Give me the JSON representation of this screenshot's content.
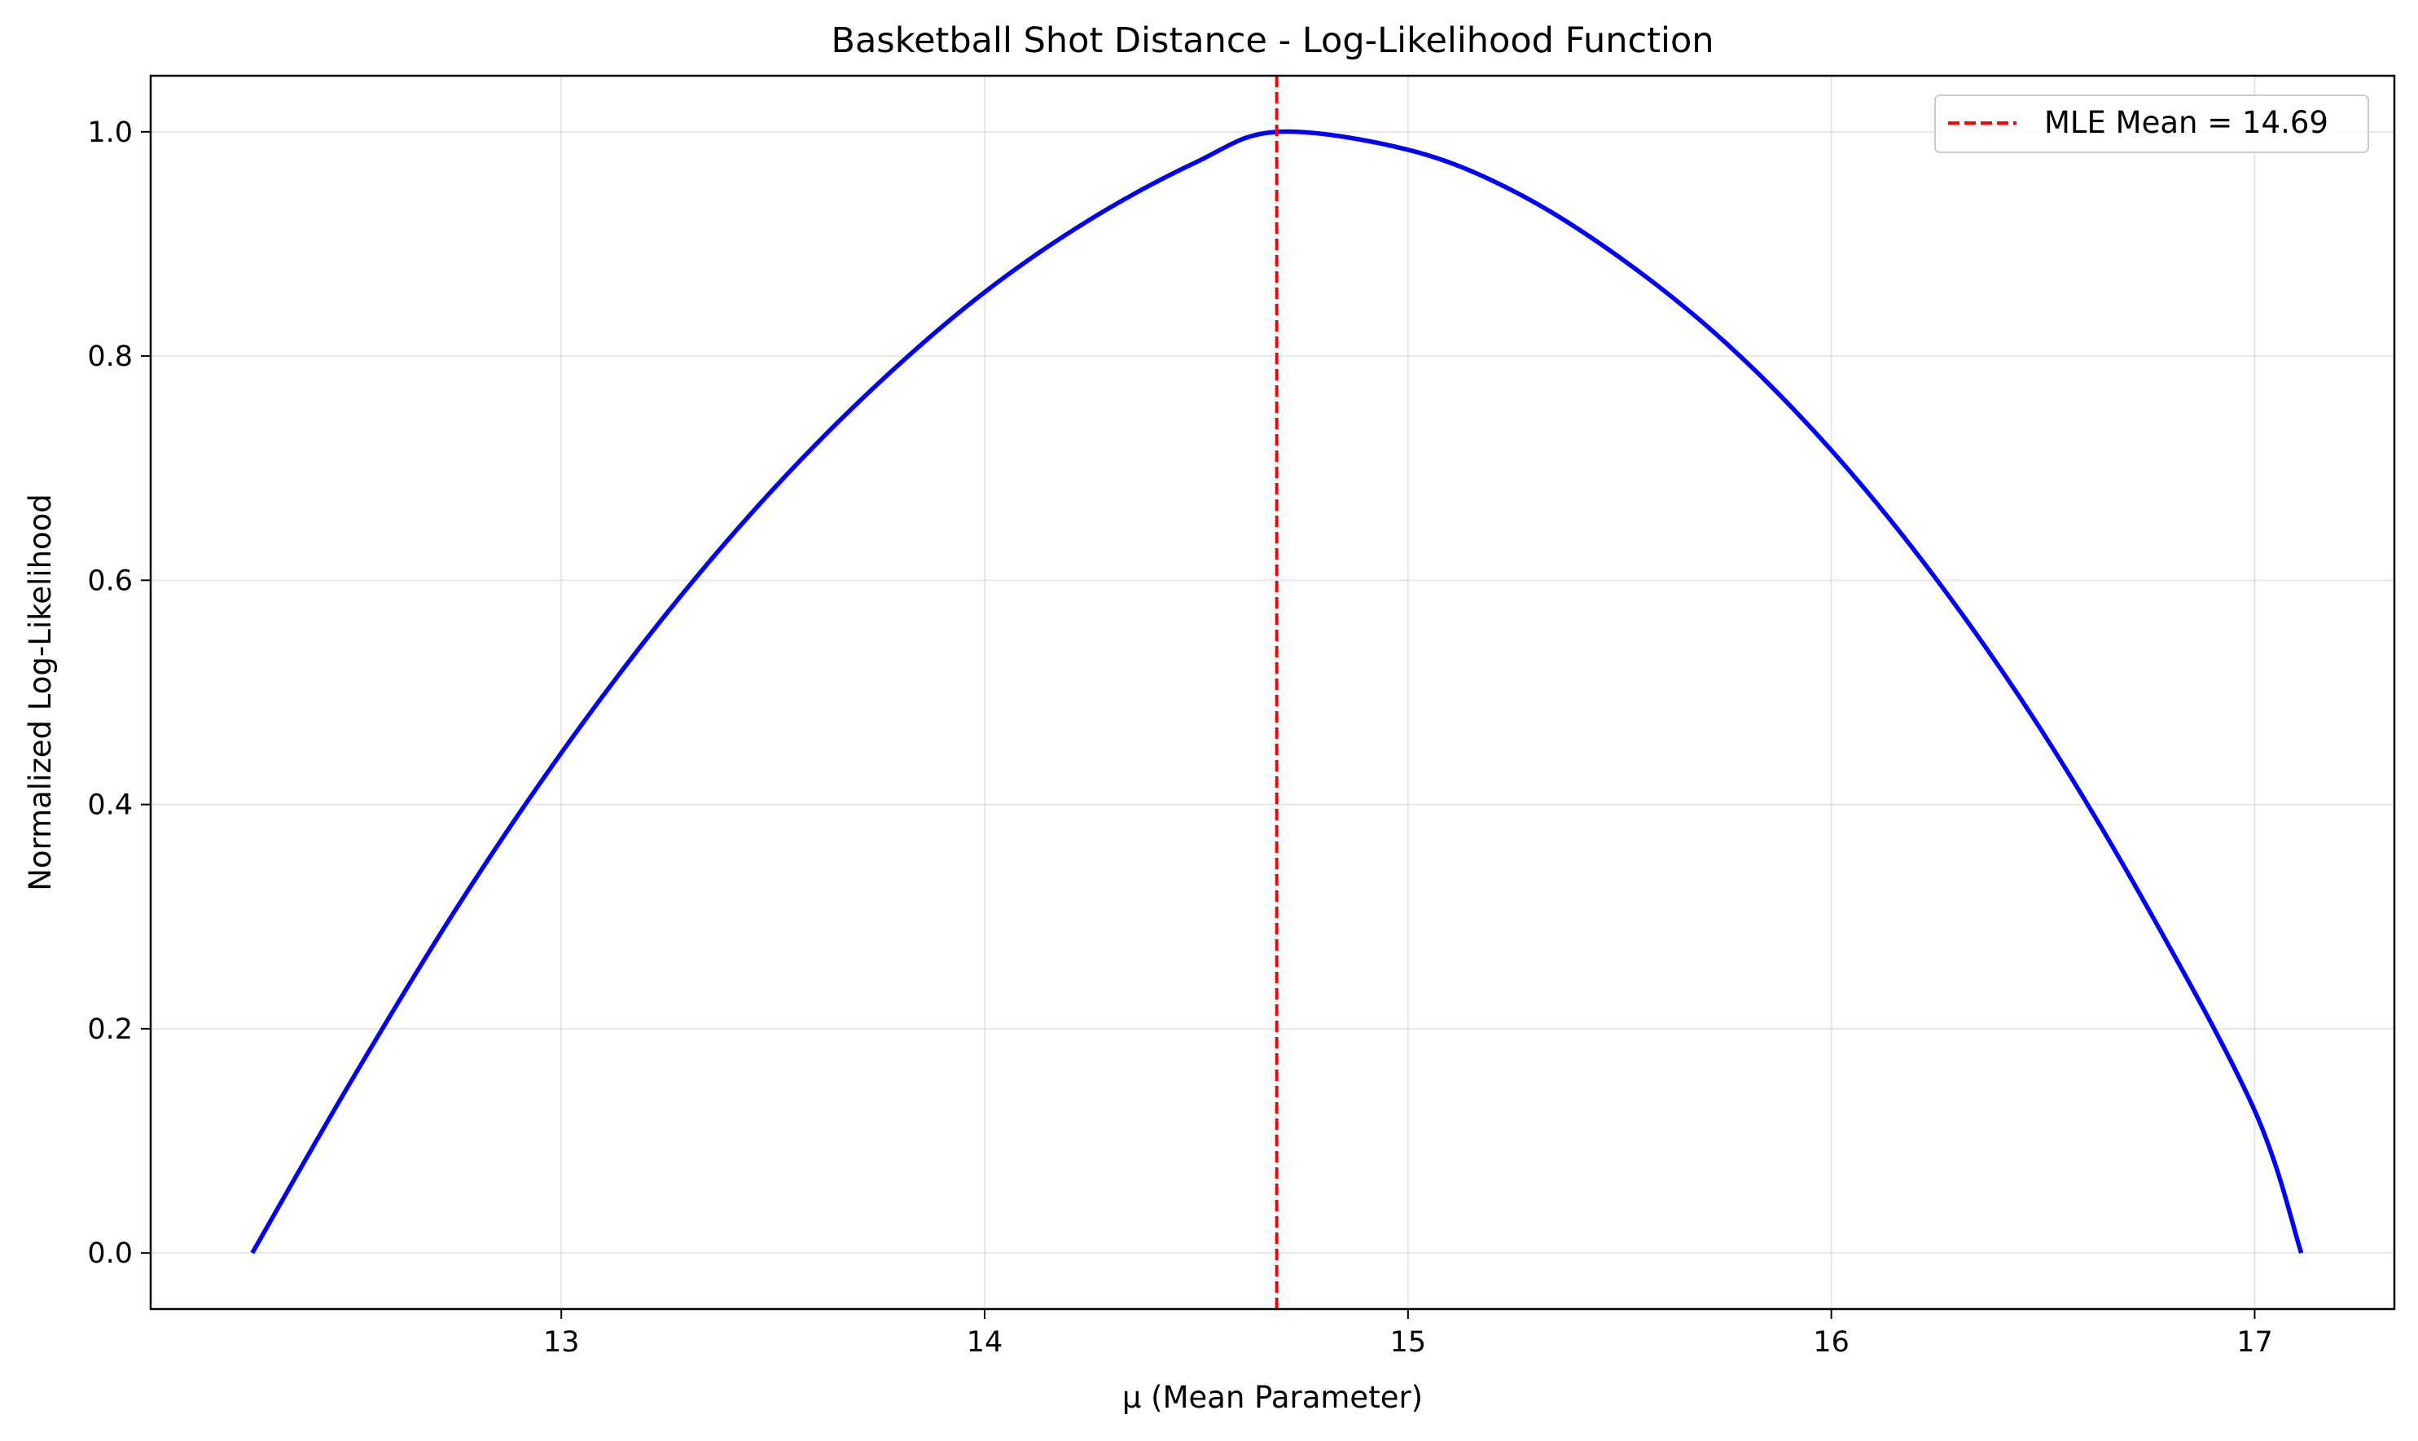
{
  "chart_data": {
    "type": "line",
    "title": "Basketball Shot Distance - Log-Likelihood Function",
    "xlabel": "μ (Mean Parameter)",
    "ylabel": "Normalized Log-Likelihood",
    "xlim": [
      12.03,
      17.33
    ],
    "ylim": [
      -0.05,
      1.05
    ],
    "xticks": [
      13,
      14,
      15,
      16,
      17
    ],
    "yticks": [
      0.0,
      0.2,
      0.4,
      0.6,
      0.8,
      1.0
    ],
    "xtick_labels": [
      "13",
      "14",
      "15",
      "16",
      "17"
    ],
    "ytick_labels": [
      "0.0",
      "0.2",
      "0.4",
      "0.6",
      "0.8",
      "1.0"
    ],
    "grid": true,
    "legend_position": "top-right",
    "series": [
      {
        "color": "#0000ff",
        "x": [
          12.27,
          12.5,
          12.75,
          13.0,
          13.25,
          13.5,
          13.75,
          14.0,
          14.25,
          14.5,
          14.69,
          15.0,
          15.25,
          15.5,
          15.75,
          16.0,
          16.25,
          16.5,
          16.75,
          17.0,
          17.11
        ],
        "y": [
          0.0,
          0.151,
          0.306,
          0.446,
          0.571,
          0.681,
          0.776,
          0.857,
          0.922,
          0.973,
          1.0,
          0.984,
          0.947,
          0.888,
          0.812,
          0.716,
          0.6,
          0.464,
          0.306,
          0.127,
          0.0
        ]
      }
    ],
    "vlines": [
      {
        "name": "MLE Mean = 14.69",
        "x": 14.69,
        "color": "#ff0000",
        "style": "dashed"
      }
    ]
  }
}
